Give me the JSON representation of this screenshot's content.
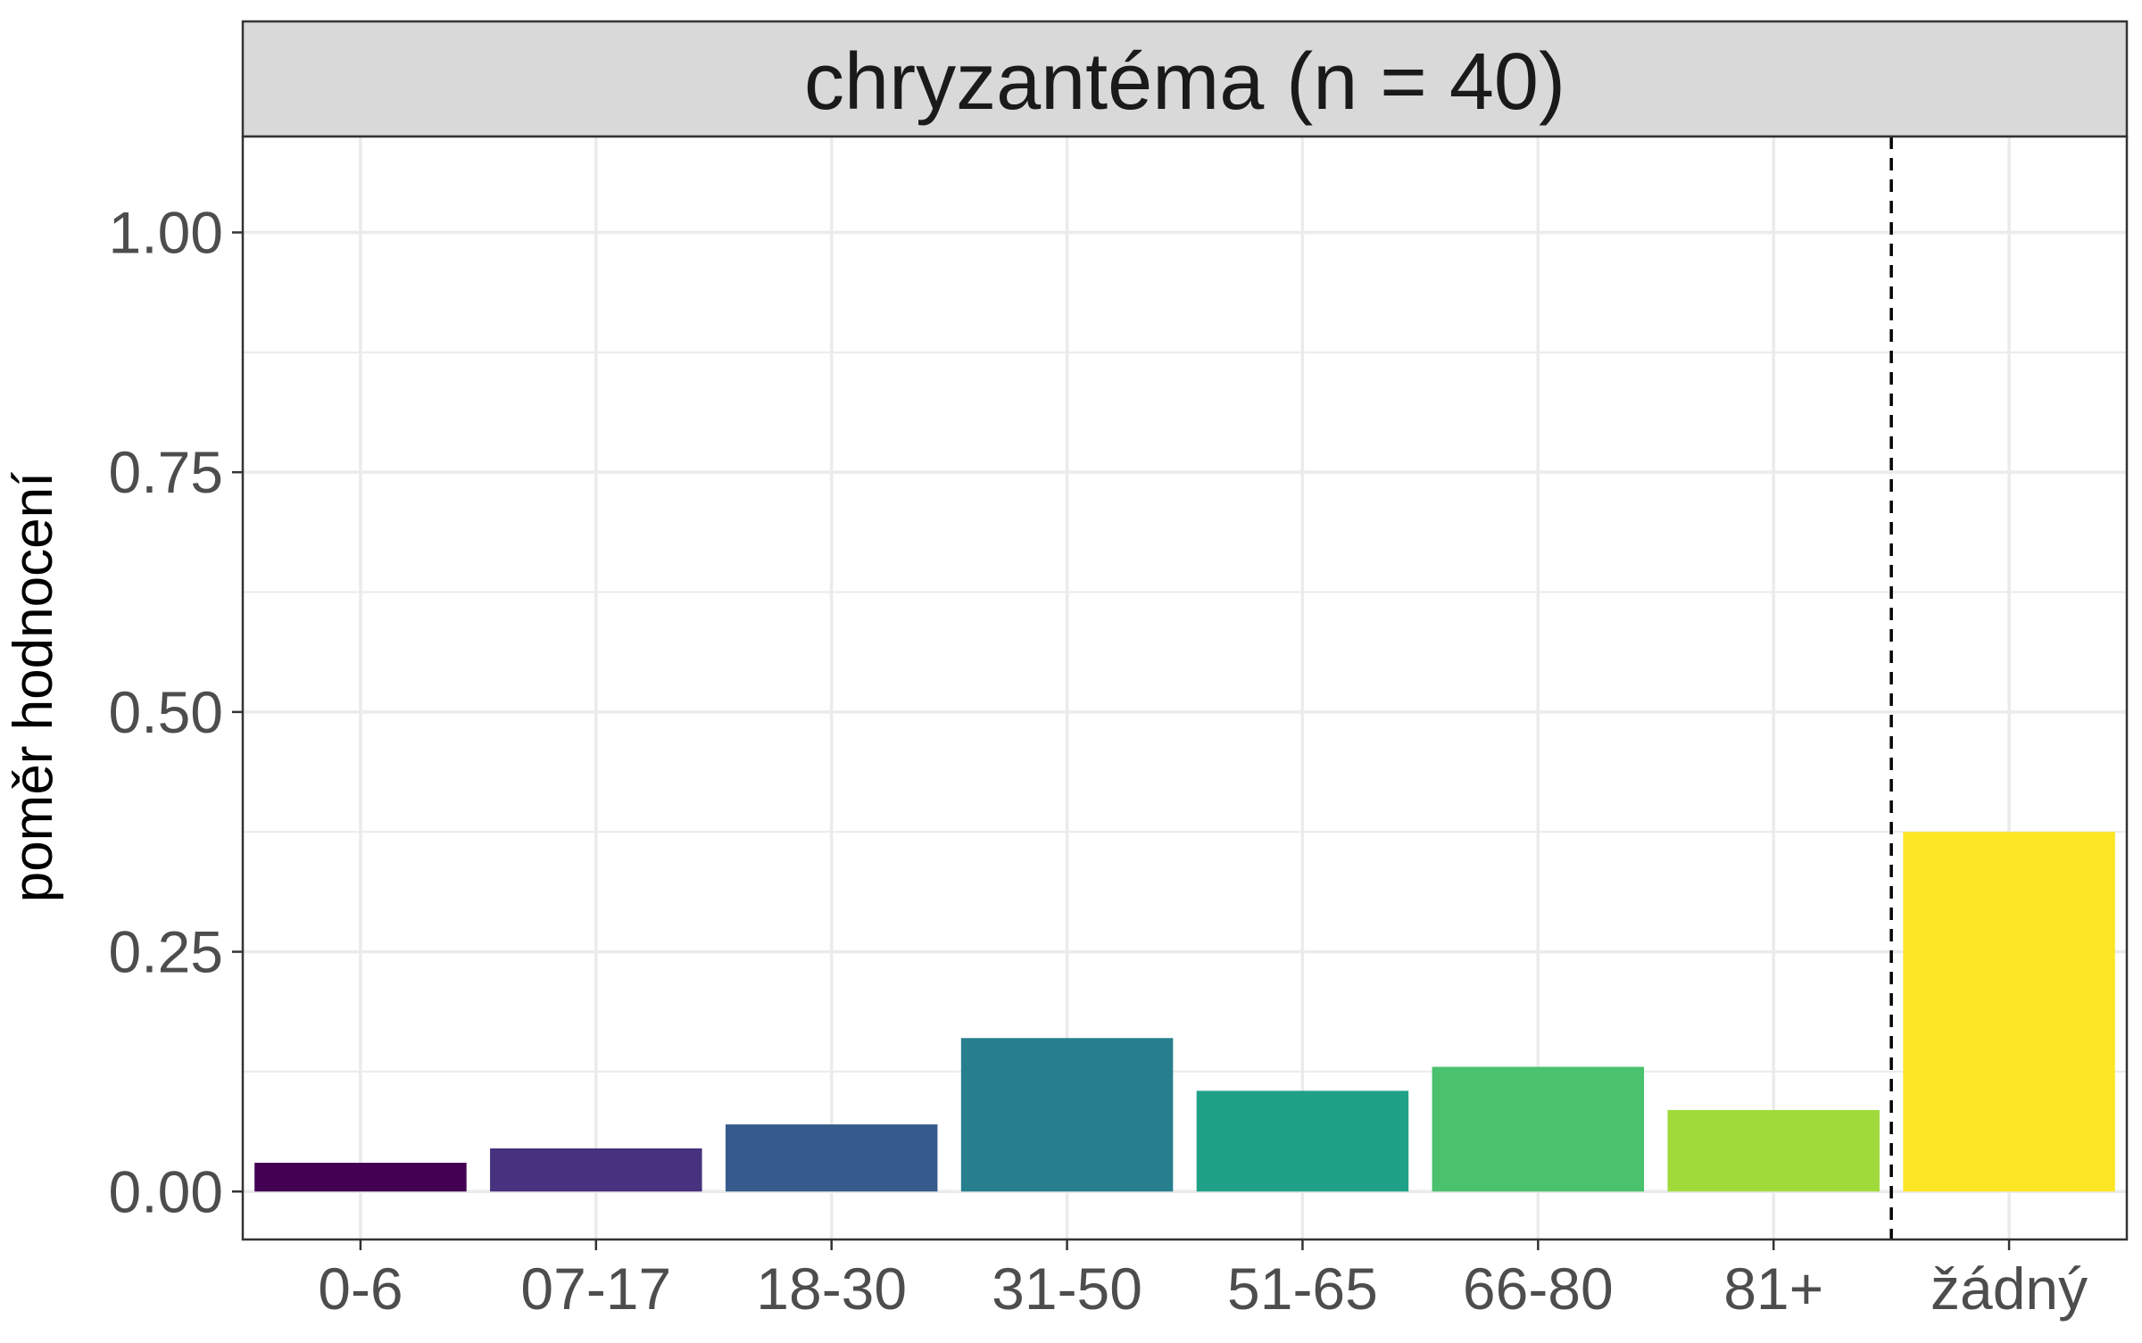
{
  "chart_data": {
    "type": "bar",
    "title": "chryzantéma (n = 40)",
    "xlabel": "",
    "ylabel": "poměr hodnocení",
    "categories": [
      "0-6",
      "07-17",
      "18-30",
      "31-50",
      "51-65",
      "66-80",
      "81+",
      "žádný"
    ],
    "values": [
      0.03,
      0.045,
      0.07,
      0.16,
      0.105,
      0.13,
      0.085,
      0.375
    ],
    "colors": [
      "#440154",
      "#46327E",
      "#365C8D",
      "#277F8E",
      "#1FA187",
      "#4AC16D",
      "#9FDA3A",
      "#FDE725"
    ],
    "y_ticks": [
      "0.00",
      "0.25",
      "0.50",
      "0.75",
      "1.00"
    ],
    "ylim": [
      -0.05,
      1.1
    ],
    "grid": true,
    "separator_after_category": "81+",
    "separator_style": "dashed"
  }
}
